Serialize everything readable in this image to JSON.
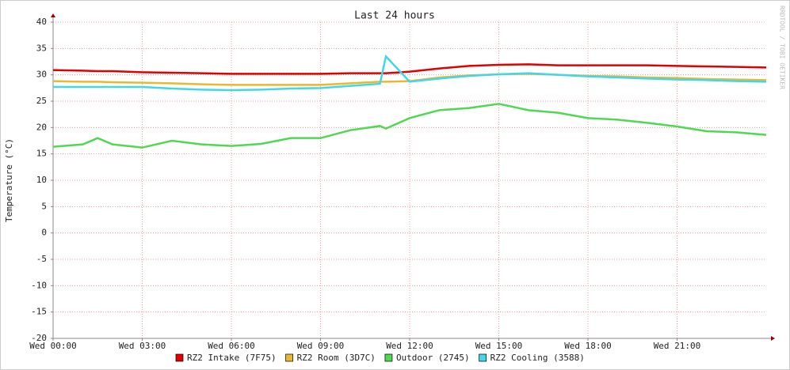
{
  "chart_data": {
    "type": "line",
    "title": "Last 24 hours",
    "y_label": "Temperature (°C)",
    "watermark": "RRDTOOL / TOBI OETIKER",
    "x": [
      0,
      1,
      1.5,
      2,
      3,
      4,
      5,
      6,
      7,
      8,
      9,
      10,
      11,
      11.2,
      12,
      13,
      14,
      15,
      16,
      17,
      18,
      19,
      20,
      21,
      22,
      23,
      24
    ],
    "xlim": [
      0,
      24
    ],
    "xticks": [
      {
        "value": 0,
        "label": "Wed 00:00"
      },
      {
        "value": 3,
        "label": "Wed 03:00"
      },
      {
        "value": 6,
        "label": "Wed 06:00"
      },
      {
        "value": 9,
        "label": "Wed 09:00"
      },
      {
        "value": 12,
        "label": "Wed 12:00"
      },
      {
        "value": 15,
        "label": "Wed 15:00"
      },
      {
        "value": 18,
        "label": "Wed 18:00"
      },
      {
        "value": 21,
        "label": "Wed 21:00"
      }
    ],
    "ylim": [
      -20,
      40
    ],
    "yticks": [
      -20,
      -15,
      -10,
      -5,
      0,
      5,
      10,
      15,
      20,
      25,
      30,
      35,
      40
    ],
    "grid": true,
    "series": [
      {
        "name": "RZ2 Intake (7F75)",
        "color": "#e00000",
        "values": [
          30.9,
          30.8,
          30.7,
          30.7,
          30.5,
          30.4,
          30.3,
          30.2,
          30.2,
          30.2,
          30.2,
          30.3,
          30.3,
          30.3,
          30.6,
          31.2,
          31.7,
          31.9,
          32.0,
          31.8,
          31.8,
          31.8,
          31.8,
          31.7,
          31.6,
          31.5,
          31.4
        ]
      },
      {
        "name": "RZ2 Room (3D7C)",
        "color": "#e8b830",
        "values": [
          28.8,
          28.7,
          28.7,
          28.6,
          28.5,
          28.4,
          28.2,
          28.1,
          28.1,
          28.1,
          28.1,
          28.4,
          28.7,
          28.7,
          28.8,
          29.5,
          29.9,
          30.1,
          30.2,
          30.0,
          29.8,
          29.7,
          29.5,
          29.4,
          29.2,
          29.1,
          29.0
        ]
      },
      {
        "name": "Outdoor (2745)",
        "color": "#50d850",
        "values": [
          16.35,
          16.8,
          18,
          16.8,
          16.2,
          17.5,
          16.8,
          16.5,
          16.9,
          18,
          18,
          19.5,
          20.3,
          19.8,
          21.8,
          23.3,
          23.7,
          24.5,
          23.3,
          22.8,
          21.8,
          21.5,
          20.9,
          20.2,
          19.3,
          19.1,
          18.6
        ]
      },
      {
        "name": "RZ2 Cooling (3588)",
        "color": "#40d8e8",
        "values": [
          27.7,
          27.7,
          27.7,
          27.7,
          27.7,
          27.4,
          27.2,
          27.1,
          27.2,
          27.4,
          27.5,
          27.9,
          28.3,
          33.5,
          28.7,
          29.3,
          29.8,
          30.1,
          30.3,
          30.0,
          29.7,
          29.5,
          29.3,
          29.1,
          29.0,
          28.8,
          28.7
        ]
      }
    ]
  }
}
